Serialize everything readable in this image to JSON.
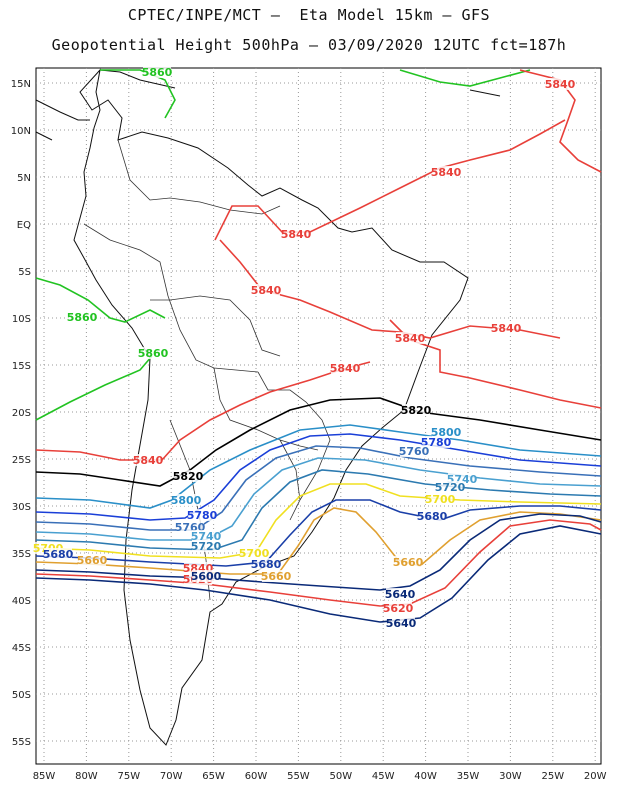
{
  "header": {
    "line1": "CPTEC/INPE/MCT –  Eta Model 15km – GFS",
    "line2": "Geopotential Height 500hPa – 03/09/2020 12UTC fct=187h"
  },
  "axes": {
    "lat_labels": [
      "15N",
      "10N",
      "5N",
      "EQ",
      "5S",
      "10S",
      "15S",
      "20S",
      "25S",
      "30S",
      "35S",
      "40S",
      "45S",
      "50S",
      "55S"
    ],
    "lon_labels": [
      "85W",
      "80W",
      "75W",
      "70W",
      "65W",
      "60W",
      "55W",
      "50W",
      "45W",
      "40W",
      "35W",
      "30W",
      "25W",
      "20W"
    ]
  },
  "contour_labels": [
    {
      "text": "5860",
      "color": "#22c322"
    },
    {
      "text": "5840",
      "color": "#e8403a"
    },
    {
      "text": "5840",
      "color": "#e8403a"
    },
    {
      "text": "5840",
      "color": "#e8403a"
    },
    {
      "text": "5840",
      "color": "#e8403a"
    },
    {
      "text": "5860",
      "color": "#22c322"
    },
    {
      "text": "5860",
      "color": "#22c322"
    },
    {
      "text": "5840",
      "color": "#e8403a"
    },
    {
      "text": "5840",
      "color": "#e8403a"
    },
    {
      "text": "5840",
      "color": "#e8403a"
    },
    {
      "text": "5840",
      "color": "#e8403a"
    },
    {
      "text": "5820",
      "color": "#000000"
    },
    {
      "text": "5800",
      "color": "#2a8fc8"
    },
    {
      "text": "5780",
      "color": "#1a3fd8"
    },
    {
      "text": "5760",
      "color": "#3a70b8"
    },
    {
      "text": "5740",
      "color": "#4aa0d0"
    },
    {
      "text": "5720",
      "color": "#2c7ab0"
    },
    {
      "text": "5700",
      "color": "#f0e020"
    },
    {
      "text": "5680",
      "color": "#1a3fa8"
    },
    {
      "text": "5660",
      "color": "#e0a030"
    },
    {
      "text": "5840",
      "color": "#e8403a"
    },
    {
      "text": "5820",
      "color": "#000000"
    },
    {
      "text": "5800",
      "color": "#2a8fc8"
    },
    {
      "text": "5780",
      "color": "#1a3fd8"
    },
    {
      "text": "5760",
      "color": "#3a70b8"
    },
    {
      "text": "5740",
      "color": "#4aa0d0"
    },
    {
      "text": "5720",
      "color": "#2c7ab0"
    },
    {
      "text": "5700",
      "color": "#f0e020"
    },
    {
      "text": "5680",
      "color": "#1a3fa8"
    },
    {
      "text": "5660",
      "color": "#e0a030"
    },
    {
      "text": "5700",
      "color": "#f0e020"
    },
    {
      "text": "5680",
      "color": "#1a3fa8"
    },
    {
      "text": "5660",
      "color": "#e0a030"
    },
    {
      "text": "5640",
      "color": "#0a2a78"
    },
    {
      "text": "5620",
      "color": "#e8403a"
    },
    {
      "text": "5640",
      "color": "#0a2a78"
    },
    {
      "text": "5620",
      "color": "#e8403a"
    },
    {
      "text": "5600",
      "color": "#0a2a78"
    }
  ]
}
